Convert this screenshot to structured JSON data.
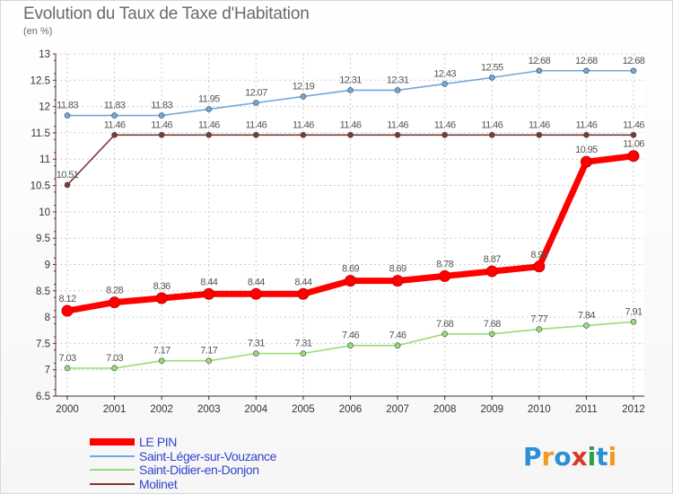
{
  "header": {
    "title": "Evolution du Taux de Taxe d'Habitation",
    "subtitle": "(en %)"
  },
  "logo": {
    "text": "Proxiti",
    "colors": [
      "#2a8fd6",
      "#f29a1e",
      "#2a8fd6",
      "#d63a2a",
      "#2ea043",
      "#2a8fd6",
      "#f29a1e"
    ]
  },
  "chart_data": {
    "type": "line",
    "title": "Evolution du Taux de Taxe d'Habitation",
    "subtitle": "(en %)",
    "xlabel": "",
    "ylabel": "",
    "x": [
      "2000",
      "2001",
      "2002",
      "2003",
      "2004",
      "2005",
      "2006",
      "2007",
      "2008",
      "2009",
      "2010",
      "2011",
      "2012"
    ],
    "ylim": [
      6.5,
      13
    ],
    "yticks": [
      "6.5",
      "7",
      "7.5",
      "8",
      "8.5",
      "9",
      "9.5",
      "10",
      "10.5",
      "11",
      "11.5",
      "12",
      "12.5",
      "13"
    ],
    "grid": true,
    "legend_position": "bottom-left",
    "series": [
      {
        "name": "LE PIN",
        "color": "#ff0000",
        "values": [
          8.12,
          8.28,
          8.36,
          8.44,
          8.44,
          8.44,
          8.69,
          8.69,
          8.78,
          8.87,
          8.96,
          10.95,
          11.06
        ],
        "labels": [
          "8.12",
          "8.28",
          "8.36",
          "8.44",
          "8.44",
          "8.44",
          "8.69",
          "8.69",
          "8.78",
          "8.87",
          "8.96",
          "10.95",
          "11.06"
        ]
      },
      {
        "name": "Saint-Léger-sur-Vouzance",
        "color": "#6fa8dc",
        "values": [
          11.83,
          11.83,
          11.83,
          11.95,
          12.07,
          12.19,
          12.31,
          12.31,
          12.43,
          12.55,
          12.68,
          12.68,
          12.68
        ],
        "labels": [
          "11.83",
          "11.83",
          "11.83",
          "11.95",
          "12.07",
          "12.19",
          "12.31",
          "12.31",
          "12.43",
          "12.55",
          "12.68",
          "12.68",
          "12.68"
        ]
      },
      {
        "name": "Saint-Didier-en-Donjon",
        "color": "#99dd77",
        "values": [
          7.03,
          7.03,
          7.17,
          7.17,
          7.31,
          7.31,
          7.46,
          7.46,
          7.68,
          7.68,
          7.77,
          7.84,
          7.91
        ],
        "labels": [
          "7.03",
          "7.03",
          "7.17",
          "7.17",
          "7.31",
          "7.31",
          "7.46",
          "7.46",
          "7.68",
          "7.68",
          "7.77",
          "7.84",
          "7.91"
        ]
      },
      {
        "name": "Molinet",
        "color": "#7a3a3a",
        "values": [
          10.51,
          11.46,
          11.46,
          11.46,
          11.46,
          11.46,
          11.46,
          11.46,
          11.46,
          11.46,
          11.46,
          11.46,
          11.46
        ],
        "labels": [
          "10.51",
          "11.46",
          "11.46",
          "11.46",
          "11.46",
          "11.46",
          "11.46",
          "11.46",
          "11.46",
          "11.46",
          "11.46",
          "11.46",
          "11.46"
        ]
      }
    ]
  }
}
